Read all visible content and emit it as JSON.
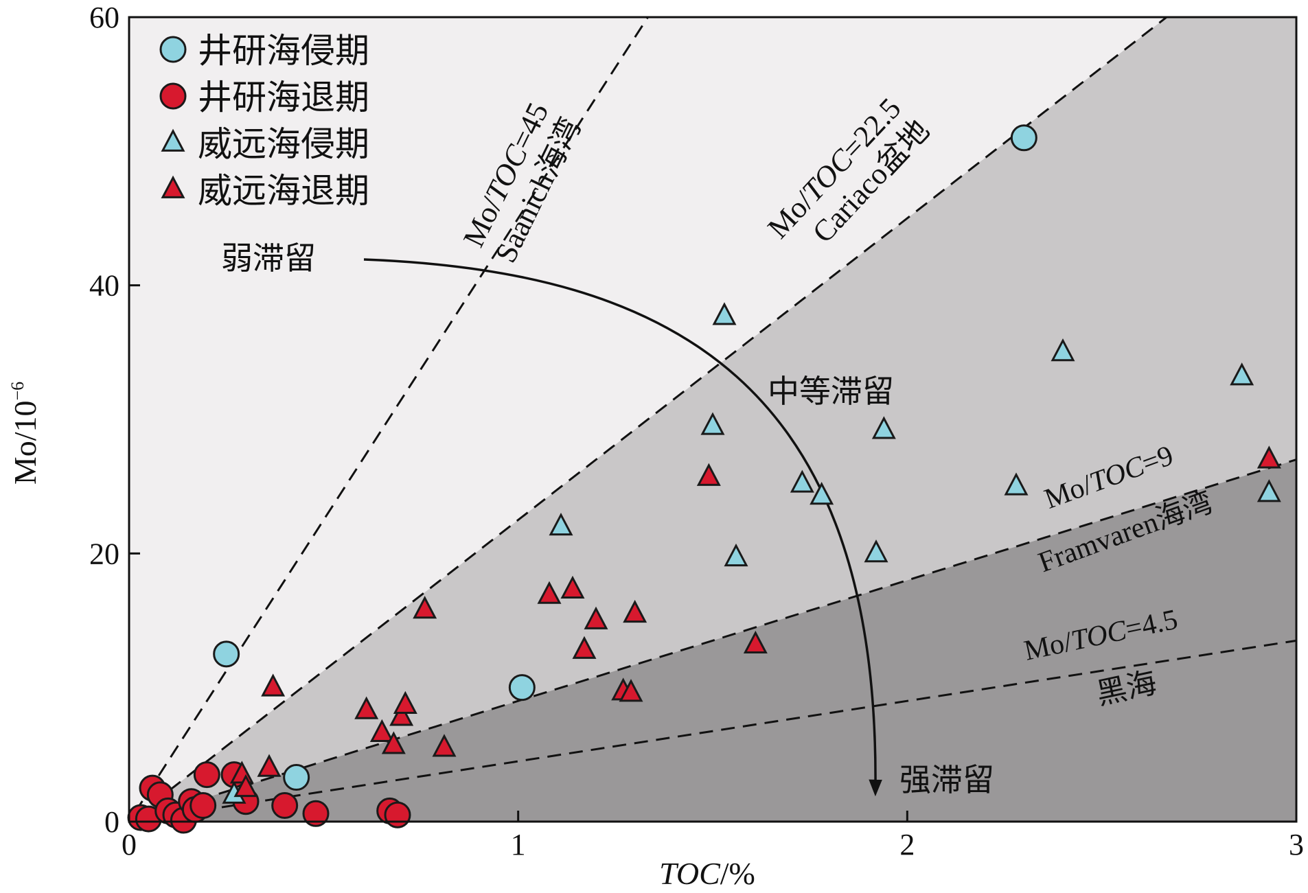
{
  "chart_data": {
    "type": "scatter",
    "xlabel_main": "TOC",
    "xlabel_unit": "/%",
    "ylabel_main": "Mo/10",
    "ylabel_sup": "−6",
    "xlim": [
      0,
      3
    ],
    "ylim": [
      0,
      60
    ],
    "xticks": [
      0,
      1,
      2,
      3
    ],
    "yticks": [
      0,
      20,
      40,
      60
    ],
    "xtick_labels": [
      "0",
      "1",
      "2",
      "3"
    ],
    "ytick_labels": [
      "0",
      "20",
      "40",
      "60"
    ],
    "legend_position": "top-left",
    "colors": {
      "blue": "#8fd3e0",
      "red": "#d7192e",
      "region1": "#f1eff0",
      "region2": "#c9c7c8",
      "region3": "#9a9899",
      "edge": "#1a1a1a"
    },
    "series": [
      {
        "name": "井研海侵期",
        "marker": "circle",
        "color": "#8fd3e0",
        "points": [
          [
            0.25,
            12.5
          ],
          [
            2.3,
            51
          ],
          [
            1.01,
            10
          ],
          [
            0.43,
            3.3
          ]
        ]
      },
      {
        "name": "井研海退期",
        "marker": "circle",
        "color": "#d7192e",
        "points": [
          [
            0.06,
            2.5
          ],
          [
            0.08,
            2.0
          ],
          [
            0.03,
            0.3
          ],
          [
            0.05,
            0.2
          ],
          [
            0.1,
            0.8
          ],
          [
            0.12,
            0.5
          ],
          [
            0.14,
            0.1
          ],
          [
            0.16,
            1.5
          ],
          [
            0.17,
            0.9
          ],
          [
            0.19,
            1.2
          ],
          [
            0.2,
            3.5
          ],
          [
            0.27,
            3.5
          ],
          [
            0.3,
            1.5
          ],
          [
            0.4,
            1.2
          ],
          [
            0.48,
            0.6
          ],
          [
            0.67,
            0.8
          ],
          [
            0.69,
            0.5
          ]
        ]
      },
      {
        "name": "威远海侵期",
        "marker": "triangle",
        "color": "#8fd3e0",
        "points": [
          [
            0.27,
            2.0
          ],
          [
            1.11,
            22.0
          ],
          [
            1.5,
            29.5
          ],
          [
            1.53,
            37.7
          ],
          [
            1.56,
            19.7
          ],
          [
            1.73,
            25.2
          ],
          [
            1.78,
            24.3
          ],
          [
            1.94,
            29.2
          ],
          [
            1.92,
            20.0
          ],
          [
            2.28,
            25.0
          ],
          [
            2.4,
            35.0
          ],
          [
            2.86,
            33.2
          ],
          [
            2.93,
            24.5
          ]
        ]
      },
      {
        "name": "威远海退期",
        "marker": "triangle",
        "color": "#d7192e",
        "points": [
          [
            0.29,
            3.5
          ],
          [
            0.3,
            2.5
          ],
          [
            0.37,
            10.0
          ],
          [
            0.36,
            4.0
          ],
          [
            0.61,
            8.3
          ],
          [
            0.65,
            6.6
          ],
          [
            0.68,
            5.7
          ],
          [
            0.7,
            7.8
          ],
          [
            0.71,
            8.7
          ],
          [
            0.76,
            15.8
          ],
          [
            0.81,
            5.5
          ],
          [
            1.08,
            16.9
          ],
          [
            1.14,
            17.3
          ],
          [
            1.17,
            12.8
          ],
          [
            1.2,
            15.0
          ],
          [
            1.27,
            9.7
          ],
          [
            1.29,
            9.6
          ],
          [
            1.3,
            15.5
          ],
          [
            1.49,
            25.7
          ],
          [
            1.61,
            13.2
          ],
          [
            2.93,
            27.0
          ]
        ]
      }
    ],
    "reference_lines": [
      {
        "name": "Mo/TOC=45",
        "slope": 45
      },
      {
        "name": "Mo/TOC=22.5",
        "slope": 22.5
      },
      {
        "name": "Mo/TOC=9",
        "slope": 9
      },
      {
        "name": "Mo/TOC=4.5",
        "slope": 4.5
      }
    ],
    "annotations": {
      "line45_prefix": "Mo/",
      "line45_italic": "TOC",
      "line45_suffix": "=45",
      "line45_site": "Saanich海湾",
      "line22_prefix": "Mo/",
      "line22_italic": "TOC",
      "line22_suffix": "=22.5",
      "line22_site": "Cariaco盆地",
      "line9_prefix": "Mo/",
      "line9_italic": "TOC",
      "line9_suffix": "=9",
      "line9_site": "Framvaren海湾",
      "line45b_prefix": "Mo/",
      "line45b_italic": "TOC",
      "line45b_suffix": "=4.5",
      "line45b_site": "黑海",
      "weak": "弱滞留",
      "moderate": "中等滞留",
      "strong": "强滞留"
    }
  }
}
